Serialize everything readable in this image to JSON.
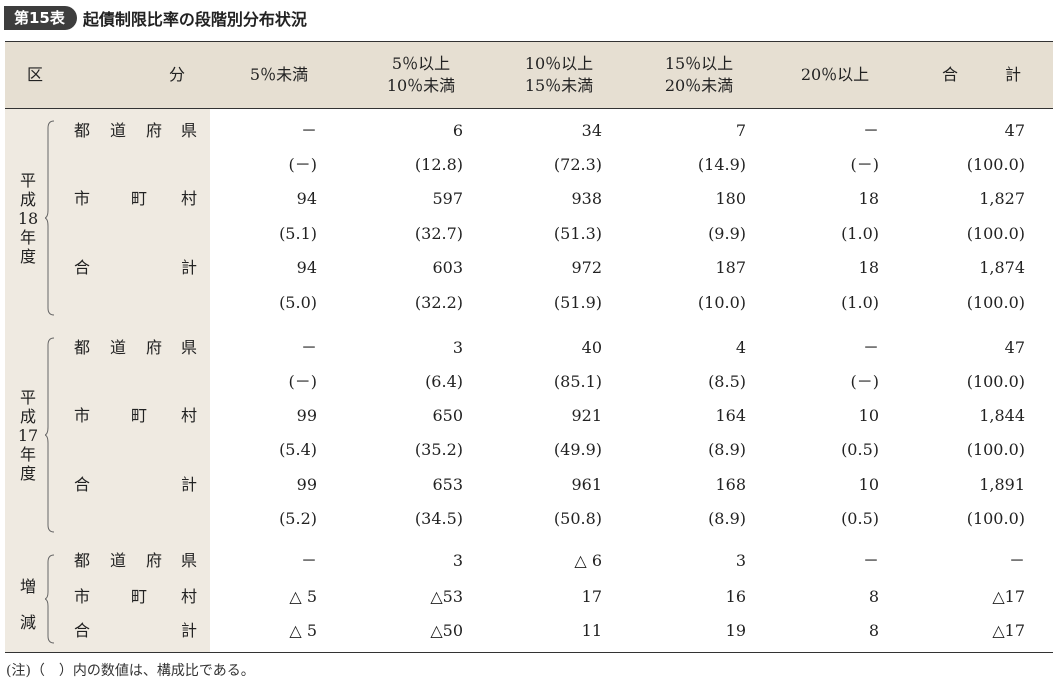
{
  "title": {
    "badge": "第15表",
    "text": "起債制限比率の段階別分布状況"
  },
  "header": {
    "ku": "区",
    "bun": "分",
    "c1": "5％未満",
    "c2a": "5％以上",
    "c2b": "10％未満",
    "c3a": "10％以上",
    "c3b": "15％未満",
    "c4a": "15％以上",
    "c4b": "20％未満",
    "c5": "20％以上",
    "c6a": "合",
    "c6b": "計"
  },
  "groups": [
    {
      "label": [
        "平",
        "成",
        "18",
        "年",
        "度"
      ]
    },
    {
      "label": [
        "平",
        "成",
        "17",
        "年",
        "度"
      ]
    },
    {
      "label": [
        "増",
        "減"
      ]
    }
  ],
  "rowlabels": {
    "pref": [
      "都",
      "道",
      "府",
      "県"
    ],
    "muni": [
      "市",
      "町",
      "村"
    ],
    "total": [
      "合",
      "計"
    ]
  },
  "rows": [
    [
      "－",
      "6",
      "34",
      "7",
      "－",
      "47"
    ],
    [
      "(－)",
      "(12.8)",
      "(72.3)",
      "(14.9)",
      "(－)",
      "(100.0)"
    ],
    [
      "94",
      "597",
      "938",
      "180",
      "18",
      "1,827"
    ],
    [
      "(5.1)",
      "(32.7)",
      "(51.3)",
      "(9.9)",
      "(1.0)",
      "(100.0)"
    ],
    [
      "94",
      "603",
      "972",
      "187",
      "18",
      "1,874"
    ],
    [
      "(5.0)",
      "(32.2)",
      "(51.9)",
      "(10.0)",
      "(1.0)",
      "(100.0)"
    ],
    [
      "－",
      "3",
      "40",
      "4",
      "－",
      "47"
    ],
    [
      "(－)",
      "(6.4)",
      "(85.1)",
      "(8.5)",
      "(－)",
      "(100.0)"
    ],
    [
      "99",
      "650",
      "921",
      "164",
      "10",
      "1,844"
    ],
    [
      "(5.4)",
      "(35.2)",
      "(49.9)",
      "(8.9)",
      "(0.5)",
      "(100.0)"
    ],
    [
      "99",
      "653",
      "961",
      "168",
      "10",
      "1,891"
    ],
    [
      "(5.2)",
      "(34.5)",
      "(50.8)",
      "(8.9)",
      "(0.5)",
      "(100.0)"
    ],
    [
      "－",
      "3",
      "△ 6",
      "3",
      "－",
      "－"
    ],
    [
      "△ 5",
      "△53",
      "17",
      "16",
      "8",
      "△17"
    ],
    [
      "△ 5",
      "△50",
      "11",
      "19",
      "8",
      "△17"
    ]
  ],
  "note": "(注)（　）内の数値は、構成比である。"
}
